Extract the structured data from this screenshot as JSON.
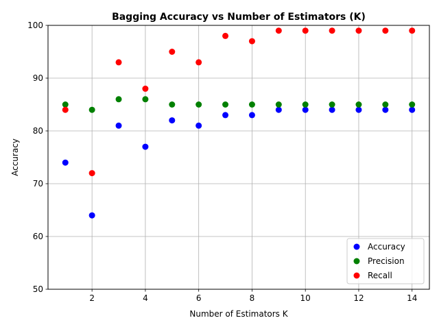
{
  "chart_data": {
    "type": "scatter",
    "title": "Bagging Accuracy vs Number of Estimators (K)",
    "xlabel": "Number of Estimators K",
    "ylabel": "Accuracy",
    "xlim": [
      0.35,
      14.65
    ],
    "ylim": [
      50,
      100
    ],
    "xticks": [
      2,
      4,
      6,
      8,
      10,
      12,
      14
    ],
    "yticks": [
      50,
      60,
      70,
      80,
      90,
      100
    ],
    "grid": true,
    "legend_position": "lower-right",
    "x": [
      1,
      2,
      3,
      4,
      5,
      6,
      7,
      8,
      9,
      10,
      11,
      12,
      13,
      14
    ],
    "series": [
      {
        "name": "Accuracy",
        "color": "#0000ff",
        "values": [
          74,
          64,
          81,
          77,
          82,
          81,
          83,
          83,
          84,
          84,
          84,
          84,
          84,
          84
        ]
      },
      {
        "name": "Precision",
        "color": "#008000",
        "values": [
          85,
          84,
          86,
          86,
          85,
          85,
          85,
          85,
          85,
          85,
          85,
          85,
          85,
          85
        ]
      },
      {
        "name": "Recall",
        "color": "#ff0000",
        "values": [
          84,
          72,
          93,
          88,
          95,
          93,
          98,
          97,
          99,
          99,
          99,
          99,
          99,
          99
        ]
      }
    ]
  }
}
